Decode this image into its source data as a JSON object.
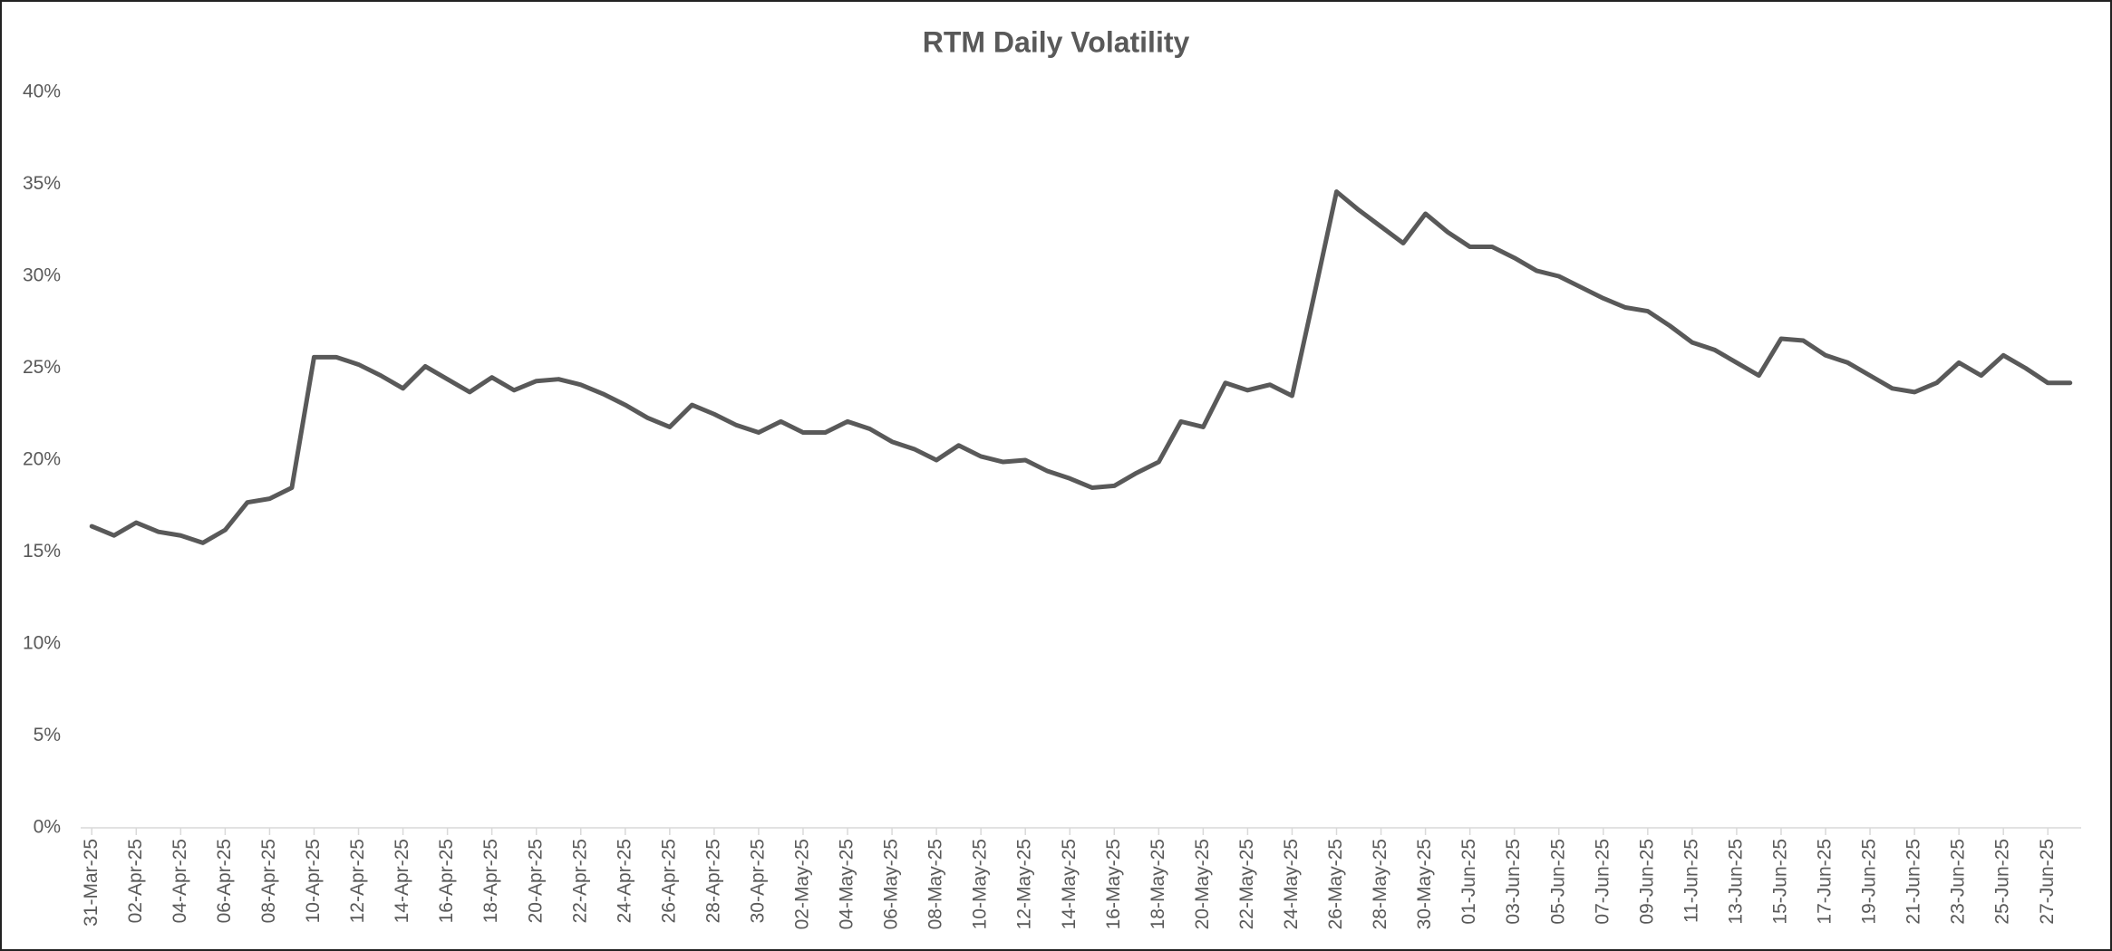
{
  "chart_data": {
    "type": "line",
    "title": "RTM Daily Volatility",
    "categories": [
      "31-Mar-25",
      null,
      "02-Apr-25",
      null,
      "04-Apr-25",
      null,
      "06-Apr-25",
      null,
      "08-Apr-25",
      null,
      "10-Apr-25",
      null,
      "12-Apr-25",
      null,
      "14-Apr-25",
      null,
      "16-Apr-25",
      null,
      "18-Apr-25",
      null,
      "20-Apr-25",
      null,
      "22-Apr-25",
      null,
      "24-Apr-25",
      null,
      "26-Apr-25",
      null,
      "28-Apr-25",
      null,
      "30-Apr-25",
      null,
      "02-May-25",
      null,
      "04-May-25",
      null,
      "06-May-25",
      null,
      "08-May-25",
      null,
      "10-May-25",
      null,
      "12-May-25",
      null,
      "14-May-25",
      null,
      "16-May-25",
      null,
      "18-May-25",
      null,
      "20-May-25",
      null,
      "22-May-25",
      null,
      "24-May-25",
      null,
      "26-May-25",
      null,
      "28-May-25",
      null,
      "30-May-25",
      null,
      "01-Jun-25",
      null,
      "03-Jun-25",
      null,
      "05-Jun-25",
      null,
      "07-Jun-25",
      null,
      "09-Jun-25",
      null,
      "11-Jun-25",
      null,
      "13-Jun-25",
      null,
      "15-Jun-25",
      null,
      "17-Jun-25",
      null,
      "19-Jun-25",
      null,
      "21-Jun-25",
      null,
      "23-Jun-25",
      null,
      "25-Jun-25",
      null,
      "27-Jun-25",
      null
    ],
    "values": [
      16.4,
      15.9,
      16.6,
      16.1,
      15.9,
      15.5,
      16.2,
      17.7,
      17.9,
      18.5,
      25.6,
      25.6,
      25.2,
      24.6,
      23.9,
      25.1,
      24.4,
      23.7,
      24.5,
      23.8,
      24.3,
      24.4,
      24.1,
      23.6,
      23.0,
      22.3,
      21.8,
      23.0,
      22.5,
      21.9,
      21.5,
      22.1,
      21.5,
      21.5,
      22.1,
      21.7,
      21.0,
      20.6,
      20.0,
      20.8,
      20.2,
      19.9,
      20.0,
      19.4,
      19.0,
      18.5,
      18.6,
      19.3,
      19.9,
      22.1,
      21.8,
      24.2,
      23.8,
      24.1,
      23.5,
      29.0,
      34.6,
      33.6,
      32.7,
      31.8,
      33.4,
      32.4,
      31.6,
      31.6,
      31.0,
      30.3,
      30.0,
      29.4,
      28.8,
      28.3,
      28.1,
      27.3,
      26.4,
      26.0,
      25.3,
      24.6,
      26.6,
      26.5,
      25.7,
      25.3,
      24.6,
      23.9,
      23.7,
      24.2,
      25.3,
      24.6,
      25.7,
      25.0,
      24.2,
      24.2
    ],
    "color": "#595959",
    "ylim": [
      0,
      40
    ],
    "yticks": [
      {
        "value": 0,
        "label": "0%"
      },
      {
        "value": 5,
        "label": "5%"
      },
      {
        "value": 10,
        "label": "10%"
      },
      {
        "value": 15,
        "label": "15%"
      },
      {
        "value": 20,
        "label": "20%"
      },
      {
        "value": 25,
        "label": "25%"
      },
      {
        "value": 30,
        "label": "30%"
      },
      {
        "value": 35,
        "label": "35%"
      },
      {
        "value": 40,
        "label": "40%"
      }
    ],
    "grid": false
  }
}
